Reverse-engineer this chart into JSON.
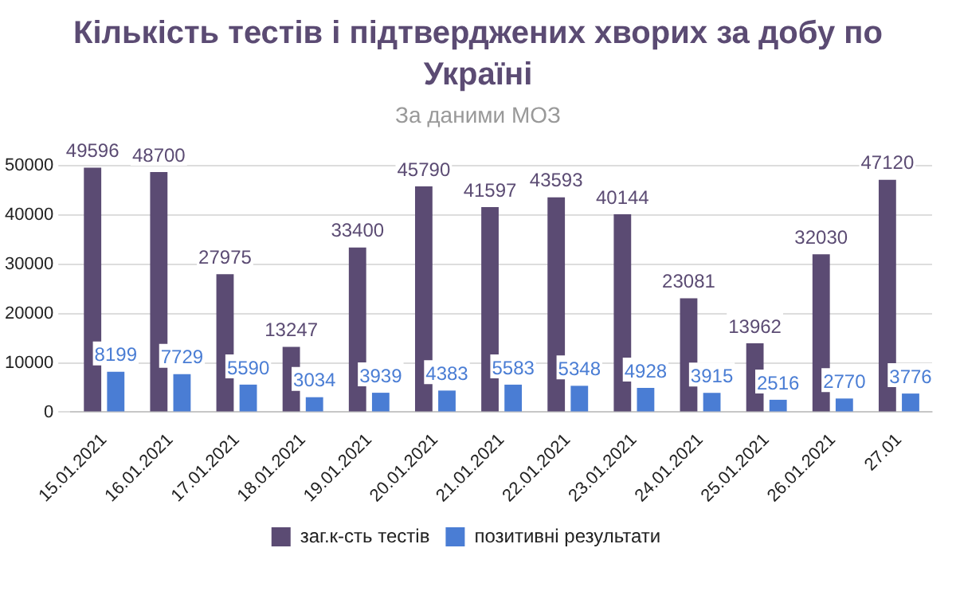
{
  "chart_data": {
    "type": "bar",
    "title": "Кількість тестів і підтверджених хворих за добу по Україні",
    "subtitle": "За даними МОЗ",
    "categories": [
      "15.01.2021",
      "16.01.2021",
      "17.01.2021",
      "18.01.2021",
      "19.01.2021",
      "20.01.2021",
      "21.01.2021",
      "22.01.2021",
      "23.01.2021",
      "24.01.2021",
      "25.01.2021",
      "26.01.2021",
      "27.01"
    ],
    "series": [
      {
        "name": "заг.к-сть тестів",
        "color": "#5b4b73",
        "values": [
          49596,
          48700,
          27975,
          13247,
          33400,
          45790,
          41597,
          43593,
          40144,
          23081,
          13962,
          32030,
          47120
        ]
      },
      {
        "name": "позитивні результати",
        "color": "#4a7dd4",
        "values": [
          8199,
          7729,
          5590,
          3034,
          3939,
          4383,
          5583,
          5348,
          4928,
          3915,
          2516,
          2770,
          3776
        ]
      }
    ],
    "ylim": [
      0,
      50000
    ],
    "yticks": [
      0,
      10000,
      20000,
      30000,
      40000,
      50000
    ],
    "grid": "y",
    "legend": "bottom",
    "data_labels": true
  }
}
